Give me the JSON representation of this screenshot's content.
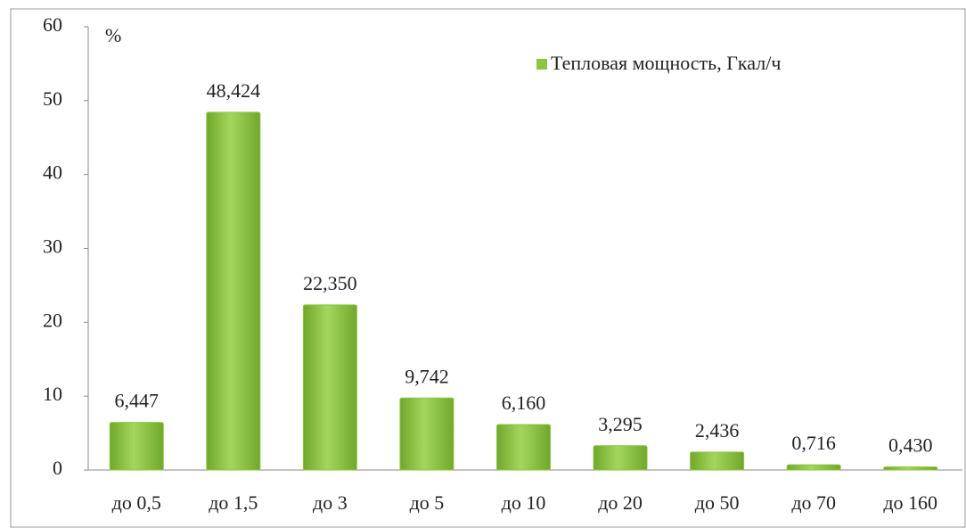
{
  "chart_data": {
    "type": "bar",
    "y_label": "%",
    "categories": [
      "до 0,5",
      "до 1,5",
      "до 3",
      "до 5",
      "до 10",
      "до 20",
      "до 50",
      "до 70",
      "до 160"
    ],
    "series": [
      {
        "name": "Тепловая мощность, Гкал/ч",
        "color": "#8cc63f",
        "values": [
          6.447,
          48.424,
          22.35,
          9.742,
          6.16,
          3.295,
          2.436,
          0.716,
          0.43
        ],
        "value_labels": [
          "6,447",
          "48,424",
          "22,350",
          "9,742",
          "6,160",
          "3,295",
          "2,436",
          "0,716",
          "0,430"
        ]
      }
    ],
    "ylim": [
      0,
      60
    ],
    "yticks": [
      0,
      10,
      20,
      30,
      40,
      50,
      60
    ],
    "grid": false,
    "legend": "top-right"
  }
}
